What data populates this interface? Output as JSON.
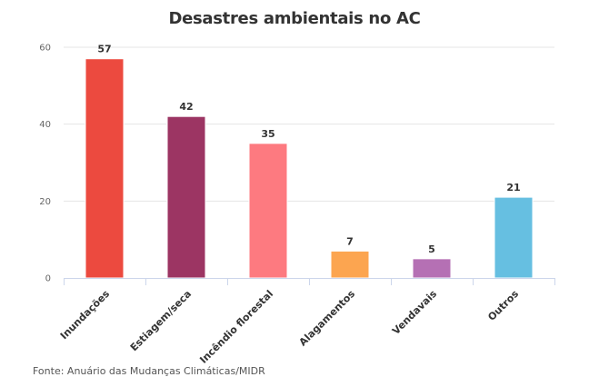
{
  "chart_data": {
    "type": "bar",
    "title": "Desastres ambientais no AC",
    "categories": [
      "Inundações",
      "Estiagem/seca",
      "Incêndio florestal",
      "Alagamentos",
      "Vendavais",
      "Outros"
    ],
    "values": [
      57,
      42,
      35,
      7,
      5,
      21
    ],
    "colors": [
      "#ec4a3f",
      "#9c3563",
      "#fd7a80",
      "#fca550",
      "#b570b4",
      "#66bfe1"
    ],
    "xlabel": "",
    "ylabel": "",
    "ylim": [
      0,
      60
    ],
    "yticks": [
      0,
      20,
      40,
      60
    ],
    "grid": true,
    "legend": "none",
    "source": "Fonte: Anuário das Mudanças Climáticas/MIDR"
  }
}
